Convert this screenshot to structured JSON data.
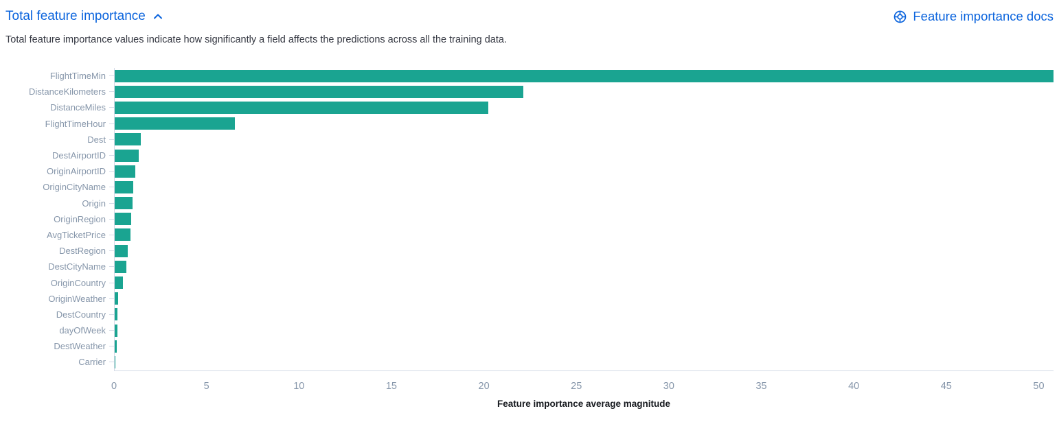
{
  "header": {
    "title": "Total feature importance",
    "docs_link_label": "Feature importance docs"
  },
  "description": "Total feature importance values indicate how significantly a field affects the predictions across all the training data.",
  "colors": {
    "link": "#0b64dd",
    "bar": "#1aa491",
    "axis_line": "#d3dae6",
    "tick_label": "#8696aa",
    "text": "#343741"
  },
  "chart_data": {
    "type": "bar",
    "orientation": "horizontal",
    "title": "Total feature importance",
    "xlabel": "Feature importance average magnitude",
    "ylabel": "",
    "xlim": [
      0,
      50.8
    ],
    "x_ticks": [
      0,
      5,
      10,
      15,
      20,
      25,
      30,
      35,
      40,
      45,
      50
    ],
    "grid": false,
    "legend": "none",
    "categories": [
      "FlightTimeMin",
      "DistanceKilometers",
      "DistanceMiles",
      "FlightTimeHour",
      "Dest",
      "DestAirportID",
      "OriginAirportID",
      "OriginCityName",
      "Origin",
      "OriginRegion",
      "AvgTicketPrice",
      "DestRegion",
      "DestCityName",
      "OriginCountry",
      "OriginWeather",
      "DestCountry",
      "dayOfWeek",
      "DestWeather",
      "Carrier"
    ],
    "values": [
      50.8,
      22.1,
      20.2,
      6.5,
      1.4,
      1.3,
      1.1,
      1.0,
      0.95,
      0.9,
      0.85,
      0.72,
      0.65,
      0.45,
      0.18,
      0.16,
      0.14,
      0.12,
      0.03
    ]
  }
}
